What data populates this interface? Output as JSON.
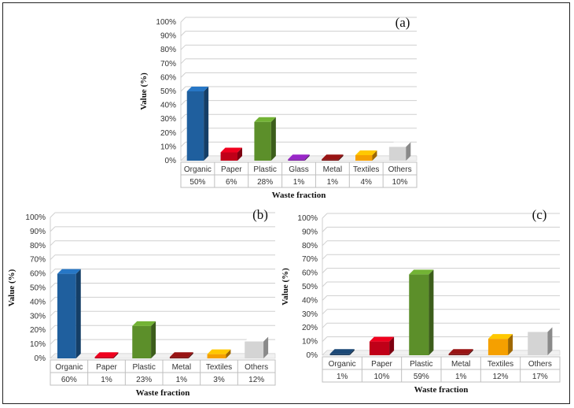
{
  "chart_data": [
    {
      "type": "bar",
      "panel_label": "(a)",
      "categories": [
        "Organic",
        "Paper",
        "Plastic",
        "Glass",
        "Metal",
        "Textiles",
        "Others"
      ],
      "value_labels": [
        "50%",
        "6%",
        "28%",
        "1%",
        "1%",
        "4%",
        "10%"
      ],
      "values": [
        50,
        6,
        28,
        1,
        1,
        4,
        10
      ],
      "xlabel": "Waste fraction",
      "ylabel": "Value (%)",
      "ylim": [
        0,
        100
      ],
      "yticks": [
        "0%",
        "10%",
        "20%",
        "30%",
        "40%",
        "50%",
        "60%",
        "70%",
        "80%",
        "90%",
        "100%"
      ],
      "colors": [
        "#1f5f9e",
        "#c00018",
        "#5c8f2a",
        "#7a1fa0",
        "#7a1010",
        "#f5a000",
        "#d4d4d4"
      ]
    },
    {
      "type": "bar",
      "panel_label": "(b)",
      "categories": [
        "Organic",
        "Paper",
        "Plastic",
        "Metal",
        "Textiles",
        "Others"
      ],
      "value_labels": [
        "60%",
        "1%",
        "23%",
        "1%",
        "3%",
        "12%"
      ],
      "values": [
        60,
        1,
        23,
        1,
        3,
        12
      ],
      "xlabel": "Waste fraction",
      "ylabel": "Value (%)",
      "ylim": [
        0,
        100
      ],
      "yticks": [
        "0%",
        "10%",
        "20%",
        "30%",
        "40%",
        "50%",
        "60%",
        "70%",
        "80%",
        "90%",
        "100%"
      ],
      "colors": [
        "#1f5f9e",
        "#c00018",
        "#5c8f2a",
        "#7a1010",
        "#f5a000",
        "#d4d4d4"
      ]
    },
    {
      "type": "bar",
      "panel_label": "(c)",
      "categories": [
        "Organic",
        "Paper",
        "Plastic",
        "Metal",
        "Textiles",
        "Others"
      ],
      "value_labels": [
        "1%",
        "10%",
        "59%",
        "1%",
        "12%",
        "17%"
      ],
      "values": [
        1,
        10,
        59,
        1,
        12,
        17
      ],
      "xlabel": "Waste fraction",
      "ylabel": "Value (%)",
      "ylim": [
        0,
        100
      ],
      "yticks": [
        "0%",
        "10%",
        "20%",
        "30%",
        "40%",
        "50%",
        "60%",
        "70%",
        "80%",
        "90%",
        "100%"
      ],
      "colors": [
        "#163a5f",
        "#c00018",
        "#5c8f2a",
        "#7a1010",
        "#f5a000",
        "#d4d4d4"
      ]
    }
  ]
}
